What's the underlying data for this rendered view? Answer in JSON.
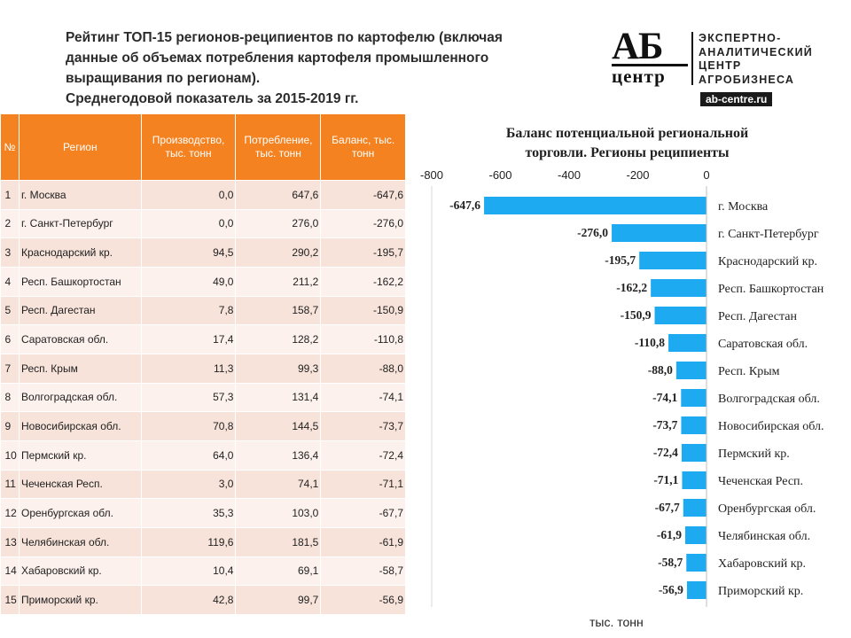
{
  "header": {
    "title_lines": [
      "Рейтинг ТОП-15 регионов-реципиентов по картофелю (включая",
      "данные об объемах потребления картофеля промышленного",
      "выращивания по регионам).",
      "Среднегодовой показатель за 2015-2019 гг."
    ]
  },
  "logo": {
    "mark_top": "АБ",
    "mark_bottom": "центр",
    "text_lines": [
      "ЭКСПЕРТНО-",
      "АНАЛИТИЧЕСКИЙ",
      "ЦЕНТР",
      "АГРОБИЗНЕСА"
    ],
    "site": "ab-centre.ru"
  },
  "table": {
    "headers": [
      "№",
      "Регион",
      "Производство, тыс. тонн",
      "Потребление, тыс. тонн",
      "Баланс, тыс. тонн"
    ],
    "rows": [
      [
        "1",
        "г. Москва",
        "0,0",
        "647,6",
        "-647,6"
      ],
      [
        "2",
        "г. Санкт-Петербург",
        "0,0",
        "276,0",
        "-276,0"
      ],
      [
        "3",
        "Краснодарский кр.",
        "94,5",
        "290,2",
        "-195,7"
      ],
      [
        "4",
        "Респ. Башкортостан",
        "49,0",
        "211,2",
        "-162,2"
      ],
      [
        "5",
        "Респ. Дагестан",
        "7,8",
        "158,7",
        "-150,9"
      ],
      [
        "6",
        "Саратовская обл.",
        "17,4",
        "128,2",
        "-110,8"
      ],
      [
        "7",
        "Респ. Крым",
        "11,3",
        "99,3",
        "-88,0"
      ],
      [
        "8",
        "Волгоградская обл.",
        "57,3",
        "131,4",
        "-74,1"
      ],
      [
        "9",
        "Новосибирская обл.",
        "70,8",
        "144,5",
        "-73,7"
      ],
      [
        "10",
        "Пермский кр.",
        "64,0",
        "136,4",
        "-72,4"
      ],
      [
        "11",
        "Чеченская Респ.",
        "3,0",
        "74,1",
        "-71,1"
      ],
      [
        "12",
        "Оренбургская обл.",
        "35,3",
        "103,0",
        "-67,7"
      ],
      [
        "13",
        "Челябинская обл.",
        "119,6",
        "181,5",
        "-61,9"
      ],
      [
        "14",
        "Хабаровский кр.",
        "10,4",
        "69,1",
        "-58,7"
      ],
      [
        "15",
        "Приморский кр.",
        "42,8",
        "99,7",
        "-56,9"
      ]
    ]
  },
  "chart_data": {
    "type": "bar",
    "orientation": "horizontal",
    "title": "Баланс потенциальной региональной торговли. Регионы реципиенты",
    "title_lines": [
      "Баланс потенциальной региональной",
      "торговли. Регионы реципиенты"
    ],
    "xlabel": "тыс. тонн",
    "xlim": [
      -800,
      0
    ],
    "xticks": [
      -800,
      -600,
      -400,
      -200,
      0
    ],
    "xtick_labels": [
      "-800",
      "-600",
      "-400",
      "-200",
      "0"
    ],
    "axis_position": "top",
    "grid": false,
    "bar_color": "#1eaaf1",
    "categories": [
      "г. Москва",
      "г. Санкт-Петербург",
      "Краснодарский кр.",
      "Респ. Башкортостан",
      "Респ. Дагестан",
      "Саратовская обл.",
      "Респ. Крым",
      "Волгоградская обл.",
      "Новосибирская обл.",
      "Пермский кр.",
      "Чеченская Респ.",
      "Оренбургская обл.",
      "Челябинская обл.",
      "Хабаровский кр.",
      "Приморский кр."
    ],
    "values": [
      -647.6,
      -276.0,
      -195.7,
      -162.2,
      -150.9,
      -110.8,
      -88.0,
      -74.1,
      -73.7,
      -72.4,
      -71.1,
      -67.7,
      -61.9,
      -58.7,
      -56.9
    ],
    "value_labels": [
      "-647,6",
      "-276,0",
      "-195,7",
      "-162,2",
      "-150,9",
      "-110,8",
      "-88,0",
      "-74,1",
      "-73,7",
      "-72,4",
      "-71,1",
      "-67,7",
      "-61,9",
      "-58,7",
      "-56,9"
    ]
  }
}
